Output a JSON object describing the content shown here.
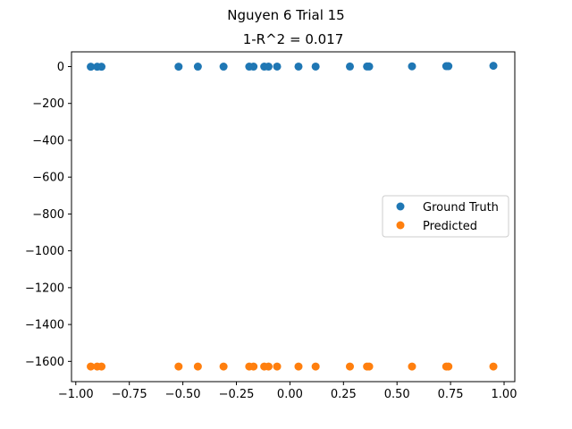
{
  "chart_data": {
    "type": "scatter",
    "suptitle": "Nguyen 6 Trial 15",
    "title": "1-R^2 = 0.017",
    "xlabel": "",
    "ylabel": "",
    "xlim": [
      -1.02,
      1.05
    ],
    "ylim": [
      -1710,
      80
    ],
    "xticks": [
      -1.0,
      -0.75,
      -0.5,
      -0.25,
      0.0,
      0.25,
      0.5,
      0.75,
      1.0
    ],
    "xtick_labels": [
      "−1.00",
      "−0.75",
      "−0.50",
      "−0.25",
      "0.00",
      "0.25",
      "0.50",
      "0.75",
      "1.00"
    ],
    "yticks": [
      0,
      -200,
      -400,
      -600,
      -800,
      -1000,
      -1200,
      -1400,
      -1600
    ],
    "ytick_labels": [
      "0",
      "−200",
      "−400",
      "−600",
      "−800",
      "−1000",
      "−1200",
      "−1400",
      "−1600"
    ],
    "grid": false,
    "legend_position": "center-right",
    "series": [
      {
        "name": "Ground Truth",
        "color": "#1f77b4",
        "x": [
          -0.93,
          -0.9,
          -0.88,
          -0.52,
          -0.43,
          -0.31,
          -0.19,
          -0.17,
          -0.12,
          -0.1,
          -0.06,
          0.04,
          0.12,
          0.28,
          0.36,
          0.37,
          0.57,
          0.73,
          0.74,
          0.95
        ],
        "y": [
          -0.8,
          -0.8,
          -0.7,
          -0.4,
          -0.3,
          -0.2,
          -0.1,
          -0.1,
          -0.1,
          -0.1,
          0.0,
          0.0,
          0.1,
          0.3,
          0.5,
          0.5,
          1.3,
          2.1,
          2.2,
          4.2
        ]
      },
      {
        "name": "Predicted",
        "color": "#ff7f0e",
        "x": [
          -0.93,
          -0.9,
          -0.88,
          -0.52,
          -0.43,
          -0.31,
          -0.19,
          -0.17,
          -0.12,
          -0.1,
          -0.06,
          0.04,
          0.12,
          0.28,
          0.36,
          0.37,
          0.57,
          0.73,
          0.74,
          0.95
        ],
        "y": [
          -1628,
          -1628,
          -1628,
          -1628,
          -1628,
          -1628,
          -1628,
          -1628,
          -1628,
          -1628,
          -1628,
          -1628,
          -1628,
          -1628,
          -1628,
          -1628,
          -1628,
          -1628,
          -1628,
          -1628
        ]
      }
    ]
  }
}
